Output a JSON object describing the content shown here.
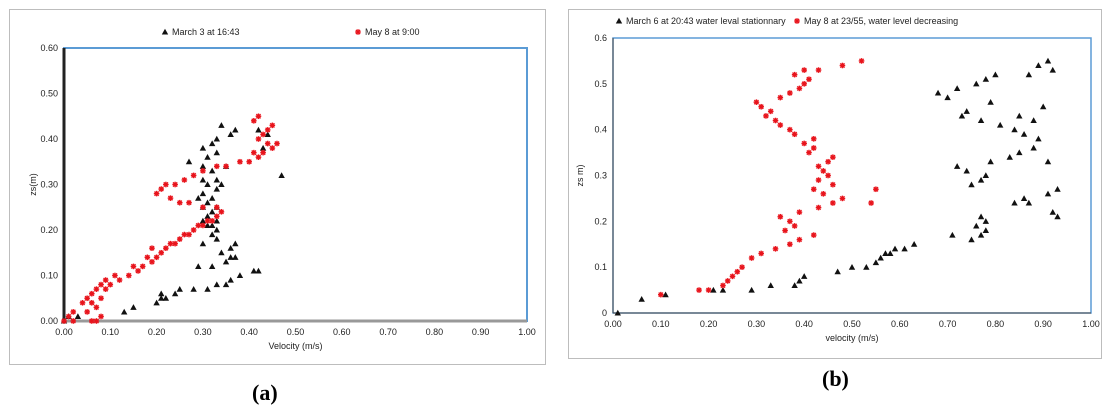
{
  "panels": [
    {
      "caption": "(a)",
      "legend": [
        {
          "marker": "▲",
          "label": "March 3 at 16:43"
        },
        {
          "marker": "✱",
          "label": "May 8 at 9:00"
        }
      ],
      "xlabel": "Velocity (m/s)",
      "ylabel": "zs(m)",
      "xticks": [
        "0.00",
        "0.10",
        "0.20",
        "0.30",
        "0.40",
        "0.50",
        "0.60",
        "0.70",
        "0.80",
        "0.90",
        "1.00"
      ],
      "yticks": [
        "0.00",
        "0.10",
        "0.20",
        "0.30",
        "0.40",
        "0.50",
        "0.60"
      ]
    },
    {
      "caption": "(b)",
      "legend": [
        {
          "marker": "▲",
          "label": "March 6 at 20:43 water leval stationnary"
        },
        {
          "marker": "✱",
          "label": "May 8 at 23/55, water level decreasing"
        }
      ],
      "xlabel": "velocity (m/s)",
      "ylabel": "zs m)",
      "xticks": [
        "0.00",
        "0.10",
        "0.20",
        "0.30",
        "0.40",
        "0.50",
        "0.60",
        "0.70",
        "0.80",
        "0.90",
        "1.00"
      ],
      "yticks": [
        "0",
        "0.1",
        "0.2",
        "0.3",
        "0.4",
        "0.5",
        "0.6"
      ]
    }
  ],
  "colors": {
    "series_black": "#111111",
    "series_red": "#e8141c",
    "frame_blue": "#5b9bd5"
  },
  "chart_data": [
    {
      "type": "scatter",
      "title": "",
      "xlabel": "Velocity (m/s)",
      "ylabel": "zs(m)",
      "xlim": [
        0,
        1
      ],
      "ylim": [
        0,
        0.6
      ],
      "grid": false,
      "legend_position": "top",
      "series": [
        {
          "name": "March 3 at 16:43",
          "marker": "triangle",
          "color": "#111111",
          "points": [
            [
              0.0,
              0.0
            ],
            [
              0.01,
              0.01
            ],
            [
              0.03,
              0.01
            ],
            [
              0.13,
              0.02
            ],
            [
              0.15,
              0.03
            ],
            [
              0.2,
              0.04
            ],
            [
              0.21,
              0.05
            ],
            [
              0.22,
              0.05
            ],
            [
              0.21,
              0.06
            ],
            [
              0.24,
              0.06
            ],
            [
              0.25,
              0.07
            ],
            [
              0.28,
              0.07
            ],
            [
              0.31,
              0.07
            ],
            [
              0.33,
              0.08
            ],
            [
              0.35,
              0.08
            ],
            [
              0.36,
              0.09
            ],
            [
              0.38,
              0.1
            ],
            [
              0.41,
              0.11
            ],
            [
              0.42,
              0.11
            ],
            [
              0.29,
              0.12
            ],
            [
              0.32,
              0.12
            ],
            [
              0.35,
              0.13
            ],
            [
              0.36,
              0.14
            ],
            [
              0.37,
              0.14
            ],
            [
              0.34,
              0.15
            ],
            [
              0.36,
              0.16
            ],
            [
              0.37,
              0.17
            ],
            [
              0.3,
              0.17
            ],
            [
              0.33,
              0.18
            ],
            [
              0.32,
              0.19
            ],
            [
              0.33,
              0.2
            ],
            [
              0.31,
              0.21
            ],
            [
              0.32,
              0.21
            ],
            [
              0.3,
              0.22
            ],
            [
              0.33,
              0.22
            ],
            [
              0.31,
              0.23
            ],
            [
              0.32,
              0.24
            ],
            [
              0.3,
              0.25
            ],
            [
              0.33,
              0.25
            ],
            [
              0.31,
              0.26
            ],
            [
              0.29,
              0.27
            ],
            [
              0.32,
              0.27
            ],
            [
              0.3,
              0.28
            ],
            [
              0.33,
              0.29
            ],
            [
              0.31,
              0.3
            ],
            [
              0.34,
              0.3
            ],
            [
              0.3,
              0.31
            ],
            [
              0.33,
              0.31
            ],
            [
              0.47,
              0.32
            ],
            [
              0.32,
              0.33
            ],
            [
              0.3,
              0.34
            ],
            [
              0.35,
              0.34
            ],
            [
              0.27,
              0.35
            ],
            [
              0.31,
              0.36
            ],
            [
              0.33,
              0.37
            ],
            [
              0.3,
              0.38
            ],
            [
              0.32,
              0.39
            ],
            [
              0.33,
              0.4
            ],
            [
              0.36,
              0.41
            ],
            [
              0.37,
              0.42
            ],
            [
              0.34,
              0.43
            ],
            [
              0.42,
              0.42
            ],
            [
              0.44,
              0.41
            ],
            [
              0.43,
              0.38
            ]
          ]
        },
        {
          "name": "May 8 at 9:00",
          "marker": "asterisk",
          "color": "#e8141c",
          "points": [
            [
              0.0,
              0.0
            ],
            [
              0.02,
              0.0
            ],
            [
              0.06,
              0.0
            ],
            [
              0.07,
              0.0
            ],
            [
              0.08,
              0.01
            ],
            [
              0.01,
              0.01
            ],
            [
              0.02,
              0.02
            ],
            [
              0.05,
              0.02
            ],
            [
              0.07,
              0.03
            ],
            [
              0.06,
              0.04
            ],
            [
              0.04,
              0.04
            ],
            [
              0.05,
              0.05
            ],
            [
              0.08,
              0.05
            ],
            [
              0.06,
              0.06
            ],
            [
              0.07,
              0.07
            ],
            [
              0.09,
              0.07
            ],
            [
              0.08,
              0.08
            ],
            [
              0.1,
              0.08
            ],
            [
              0.09,
              0.09
            ],
            [
              0.12,
              0.09
            ],
            [
              0.11,
              0.1
            ],
            [
              0.14,
              0.1
            ],
            [
              0.16,
              0.11
            ],
            [
              0.15,
              0.12
            ],
            [
              0.17,
              0.12
            ],
            [
              0.19,
              0.13
            ],
            [
              0.18,
              0.14
            ],
            [
              0.2,
              0.14
            ],
            [
              0.21,
              0.15
            ],
            [
              0.19,
              0.16
            ],
            [
              0.22,
              0.16
            ],
            [
              0.23,
              0.17
            ],
            [
              0.24,
              0.17
            ],
            [
              0.25,
              0.18
            ],
            [
              0.26,
              0.19
            ],
            [
              0.27,
              0.19
            ],
            [
              0.28,
              0.2
            ],
            [
              0.29,
              0.21
            ],
            [
              0.3,
              0.21
            ],
            [
              0.31,
              0.22
            ],
            [
              0.32,
              0.22
            ],
            [
              0.33,
              0.23
            ],
            [
              0.34,
              0.24
            ],
            [
              0.33,
              0.25
            ],
            [
              0.3,
              0.25
            ],
            [
              0.27,
              0.26
            ],
            [
              0.25,
              0.26
            ],
            [
              0.23,
              0.27
            ],
            [
              0.2,
              0.28
            ],
            [
              0.21,
              0.29
            ],
            [
              0.22,
              0.3
            ],
            [
              0.24,
              0.3
            ],
            [
              0.26,
              0.31
            ],
            [
              0.28,
              0.32
            ],
            [
              0.3,
              0.33
            ],
            [
              0.33,
              0.34
            ],
            [
              0.35,
              0.34
            ],
            [
              0.38,
              0.35
            ],
            [
              0.4,
              0.35
            ],
            [
              0.42,
              0.36
            ],
            [
              0.41,
              0.37
            ],
            [
              0.43,
              0.37
            ],
            [
              0.45,
              0.38
            ],
            [
              0.46,
              0.39
            ],
            [
              0.44,
              0.39
            ],
            [
              0.42,
              0.4
            ],
            [
              0.43,
              0.41
            ],
            [
              0.44,
              0.42
            ],
            [
              0.45,
              0.43
            ],
            [
              0.41,
              0.44
            ],
            [
              0.42,
              0.45
            ]
          ]
        }
      ]
    },
    {
      "type": "scatter",
      "title": "",
      "xlabel": "velocity (m/s)",
      "ylabel": "zs m)",
      "xlim": [
        0,
        1
      ],
      "ylim": [
        0,
        0.6
      ],
      "grid": false,
      "legend_position": "top",
      "series": [
        {
          "name": "March 6 at 20:43 water leval stationnary",
          "marker": "triangle",
          "color": "#111111",
          "points": [
            [
              0.01,
              0.0
            ],
            [
              0.06,
              0.03
            ],
            [
              0.11,
              0.04
            ],
            [
              0.21,
              0.05
            ],
            [
              0.23,
              0.05
            ],
            [
              0.29,
              0.05
            ],
            [
              0.33,
              0.06
            ],
            [
              0.38,
              0.06
            ],
            [
              0.39,
              0.07
            ],
            [
              0.4,
              0.08
            ],
            [
              0.47,
              0.09
            ],
            [
              0.5,
              0.1
            ],
            [
              0.53,
              0.1
            ],
            [
              0.55,
              0.11
            ],
            [
              0.56,
              0.12
            ],
            [
              0.57,
              0.13
            ],
            [
              0.58,
              0.13
            ],
            [
              0.59,
              0.14
            ],
            [
              0.61,
              0.14
            ],
            [
              0.63,
              0.15
            ],
            [
              0.71,
              0.17
            ],
            [
              0.75,
              0.16
            ],
            [
              0.77,
              0.17
            ],
            [
              0.78,
              0.18
            ],
            [
              0.76,
              0.19
            ],
            [
              0.78,
              0.2
            ],
            [
              0.77,
              0.21
            ],
            [
              0.84,
              0.24
            ],
            [
              0.86,
              0.25
            ],
            [
              0.87,
              0.24
            ],
            [
              0.92,
              0.22
            ],
            [
              0.93,
              0.21
            ],
            [
              0.91,
              0.26
            ],
            [
              0.93,
              0.27
            ],
            [
              0.75,
              0.28
            ],
            [
              0.77,
              0.29
            ],
            [
              0.78,
              0.3
            ],
            [
              0.74,
              0.31
            ],
            [
              0.72,
              0.32
            ],
            [
              0.79,
              0.33
            ],
            [
              0.83,
              0.34
            ],
            [
              0.85,
              0.35
            ],
            [
              0.88,
              0.36
            ],
            [
              0.91,
              0.33
            ],
            [
              0.89,
              0.38
            ],
            [
              0.86,
              0.39
            ],
            [
              0.84,
              0.4
            ],
            [
              0.81,
              0.41
            ],
            [
              0.77,
              0.42
            ],
            [
              0.73,
              0.43
            ],
            [
              0.74,
              0.44
            ],
            [
              0.85,
              0.43
            ],
            [
              0.88,
              0.42
            ],
            [
              0.9,
              0.45
            ],
            [
              0.79,
              0.46
            ],
            [
              0.7,
              0.47
            ],
            [
              0.68,
              0.48
            ],
            [
              0.72,
              0.49
            ],
            [
              0.76,
              0.5
            ],
            [
              0.78,
              0.51
            ],
            [
              0.8,
              0.52
            ],
            [
              0.87,
              0.52
            ],
            [
              0.89,
              0.54
            ],
            [
              0.91,
              0.55
            ],
            [
              0.92,
              0.53
            ]
          ]
        },
        {
          "name": "May 8 at 23/55, water level decreasing",
          "marker": "asterisk",
          "color": "#e8141c",
          "points": [
            [
              0.1,
              0.04
            ],
            [
              0.18,
              0.05
            ],
            [
              0.2,
              0.05
            ],
            [
              0.23,
              0.06
            ],
            [
              0.24,
              0.07
            ],
            [
              0.25,
              0.08
            ],
            [
              0.26,
              0.09
            ],
            [
              0.27,
              0.1
            ],
            [
              0.29,
              0.12
            ],
            [
              0.31,
              0.13
            ],
            [
              0.34,
              0.14
            ],
            [
              0.37,
              0.15
            ],
            [
              0.39,
              0.16
            ],
            [
              0.42,
              0.17
            ],
            [
              0.36,
              0.18
            ],
            [
              0.38,
              0.19
            ],
            [
              0.37,
              0.2
            ],
            [
              0.35,
              0.21
            ],
            [
              0.39,
              0.22
            ],
            [
              0.43,
              0.23
            ],
            [
              0.46,
              0.24
            ],
            [
              0.48,
              0.25
            ],
            [
              0.44,
              0.26
            ],
            [
              0.42,
              0.27
            ],
            [
              0.46,
              0.28
            ],
            [
              0.43,
              0.29
            ],
            [
              0.45,
              0.3
            ],
            [
              0.44,
              0.31
            ],
            [
              0.43,
              0.32
            ],
            [
              0.45,
              0.33
            ],
            [
              0.46,
              0.34
            ],
            [
              0.41,
              0.35
            ],
            [
              0.42,
              0.36
            ],
            [
              0.4,
              0.37
            ],
            [
              0.42,
              0.38
            ],
            [
              0.38,
              0.39
            ],
            [
              0.37,
              0.4
            ],
            [
              0.35,
              0.41
            ],
            [
              0.34,
              0.42
            ],
            [
              0.32,
              0.43
            ],
            [
              0.33,
              0.44
            ],
            [
              0.31,
              0.45
            ],
            [
              0.3,
              0.46
            ],
            [
              0.35,
              0.47
            ],
            [
              0.37,
              0.48
            ],
            [
              0.39,
              0.49
            ],
            [
              0.4,
              0.5
            ],
            [
              0.41,
              0.51
            ],
            [
              0.38,
              0.52
            ],
            [
              0.4,
              0.53
            ],
            [
              0.43,
              0.53
            ],
            [
              0.48,
              0.54
            ],
            [
              0.52,
              0.55
            ],
            [
              0.55,
              0.27
            ],
            [
              0.54,
              0.24
            ]
          ]
        }
      ]
    }
  ]
}
